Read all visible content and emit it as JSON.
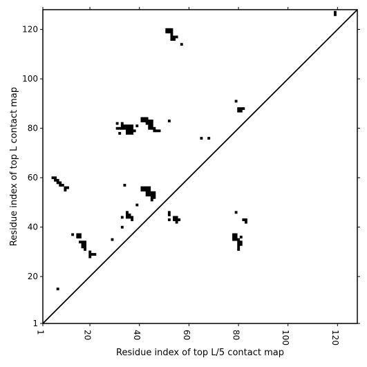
{
  "chart_data": {
    "type": "heatmap",
    "title": "",
    "xlabel": "Residue index of top L/5 contact map",
    "ylabel": "Residue index of top L contact map",
    "xlim": [
      1,
      128
    ],
    "ylim": [
      1,
      128
    ],
    "x_ticks": [
      "1",
      "20",
      "40",
      "60",
      "80",
      "100",
      "120"
    ],
    "x_tick_values": [
      1,
      20,
      40,
      60,
      80,
      100,
      120
    ],
    "y_ticks": [
      "1",
      "20",
      "40",
      "60",
      "80",
      "100",
      "120"
    ],
    "y_tick_values": [
      1,
      20,
      40,
      60,
      80,
      100,
      120
    ],
    "diagonal": true,
    "grid": false,
    "cell_color": "#000000",
    "upper_triangle_contacts": [
      [
        5,
        60
      ],
      [
        6,
        60
      ],
      [
        6,
        59
      ],
      [
        7,
        58
      ],
      [
        7,
        59
      ],
      [
        8,
        58
      ],
      [
        8,
        57
      ],
      [
        9,
        57
      ],
      [
        10,
        56
      ],
      [
        11,
        56
      ],
      [
        10,
        55
      ],
      [
        7,
        15
      ],
      [
        31,
        80
      ],
      [
        32,
        80
      ],
      [
        33,
        80
      ],
      [
        34,
        80
      ],
      [
        35,
        80
      ],
      [
        36,
        80
      ],
      [
        37,
        80
      ],
      [
        33,
        81
      ],
      [
        34,
        81
      ],
      [
        35,
        81
      ],
      [
        36,
        81
      ],
      [
        37,
        81
      ],
      [
        33,
        82
      ],
      [
        31,
        82
      ],
      [
        35,
        79
      ],
      [
        36,
        79
      ],
      [
        37,
        79
      ],
      [
        38,
        79
      ],
      [
        35,
        78
      ],
      [
        36,
        78
      ],
      [
        37,
        78
      ],
      [
        32,
        78
      ],
      [
        39,
        81
      ],
      [
        41,
        84
      ],
      [
        42,
        84
      ],
      [
        43,
        84
      ],
      [
        41,
        83
      ],
      [
        42,
        83
      ],
      [
        43,
        83
      ],
      [
        44,
        83
      ],
      [
        45,
        83
      ],
      [
        43,
        82
      ],
      [
        44,
        82
      ],
      [
        45,
        82
      ],
      [
        44,
        81
      ],
      [
        45,
        81
      ],
      [
        44,
        80
      ],
      [
        45,
        80
      ],
      [
        46,
        80
      ],
      [
        46,
        79
      ],
      [
        47,
        79
      ],
      [
        48,
        79
      ],
      [
        52,
        83
      ],
      [
        51,
        120
      ],
      [
        52,
        120
      ],
      [
        53,
        120
      ],
      [
        51,
        119
      ],
      [
        52,
        119
      ],
      [
        53,
        119
      ],
      [
        53,
        118
      ],
      [
        53,
        117
      ],
      [
        54,
        117
      ],
      [
        55,
        117
      ],
      [
        53,
        116
      ],
      [
        54,
        116
      ],
      [
        57,
        114
      ],
      [
        119,
        127
      ],
      [
        119,
        126
      ],
      [
        79,
        91
      ],
      [
        80,
        88
      ],
      [
        81,
        88
      ],
      [
        82,
        88
      ],
      [
        80,
        87
      ],
      [
        81,
        87
      ],
      [
        65,
        76
      ],
      [
        68,
        76
      ]
    ],
    "lower_triangle_contacts": [
      [
        34,
        57
      ],
      [
        41,
        56
      ],
      [
        42,
        56
      ],
      [
        43,
        56
      ],
      [
        44,
        56
      ],
      [
        41,
        55
      ],
      [
        42,
        55
      ],
      [
        43,
        55
      ],
      [
        44,
        55
      ],
      [
        43,
        54
      ],
      [
        44,
        54
      ],
      [
        45,
        54
      ],
      [
        46,
        54
      ],
      [
        43,
        53
      ],
      [
        44,
        53
      ],
      [
        45,
        53
      ],
      [
        46,
        53
      ],
      [
        45,
        52
      ],
      [
        46,
        52
      ],
      [
        45,
        51
      ],
      [
        39,
        49
      ],
      [
        35,
        46
      ],
      [
        35,
        45
      ],
      [
        36,
        45
      ],
      [
        33,
        44
      ],
      [
        35,
        44
      ],
      [
        36,
        44
      ],
      [
        37,
        44
      ],
      [
        37,
        43
      ],
      [
        33,
        40
      ],
      [
        52,
        46
      ],
      [
        52,
        45
      ],
      [
        54,
        44
      ],
      [
        55,
        44
      ],
      [
        52,
        43
      ],
      [
        54,
        43
      ],
      [
        55,
        43
      ],
      [
        56,
        43
      ],
      [
        55,
        42
      ],
      [
        13,
        37
      ],
      [
        15,
        37
      ],
      [
        16,
        37
      ],
      [
        15,
        36
      ],
      [
        16,
        36
      ],
      [
        16,
        34
      ],
      [
        17,
        34
      ],
      [
        18,
        34
      ],
      [
        17,
        33
      ],
      [
        18,
        33
      ],
      [
        17,
        32
      ],
      [
        18,
        32
      ],
      [
        18,
        31
      ],
      [
        20,
        30
      ],
      [
        20,
        29
      ],
      [
        21,
        29
      ],
      [
        22,
        29
      ],
      [
        20,
        28
      ],
      [
        29,
        35
      ],
      [
        79,
        46
      ],
      [
        82,
        43
      ],
      [
        83,
        43
      ],
      [
        83,
        42
      ],
      [
        78,
        37
      ],
      [
        79,
        37
      ],
      [
        78,
        36
      ],
      [
        79,
        36
      ],
      [
        78,
        35
      ],
      [
        79,
        35
      ],
      [
        80,
        35
      ],
      [
        81,
        36
      ],
      [
        80,
        34
      ],
      [
        81,
        34
      ],
      [
        80,
        33
      ],
      [
        81,
        33
      ],
      [
        80,
        32
      ],
      [
        80,
        31
      ]
    ]
  }
}
